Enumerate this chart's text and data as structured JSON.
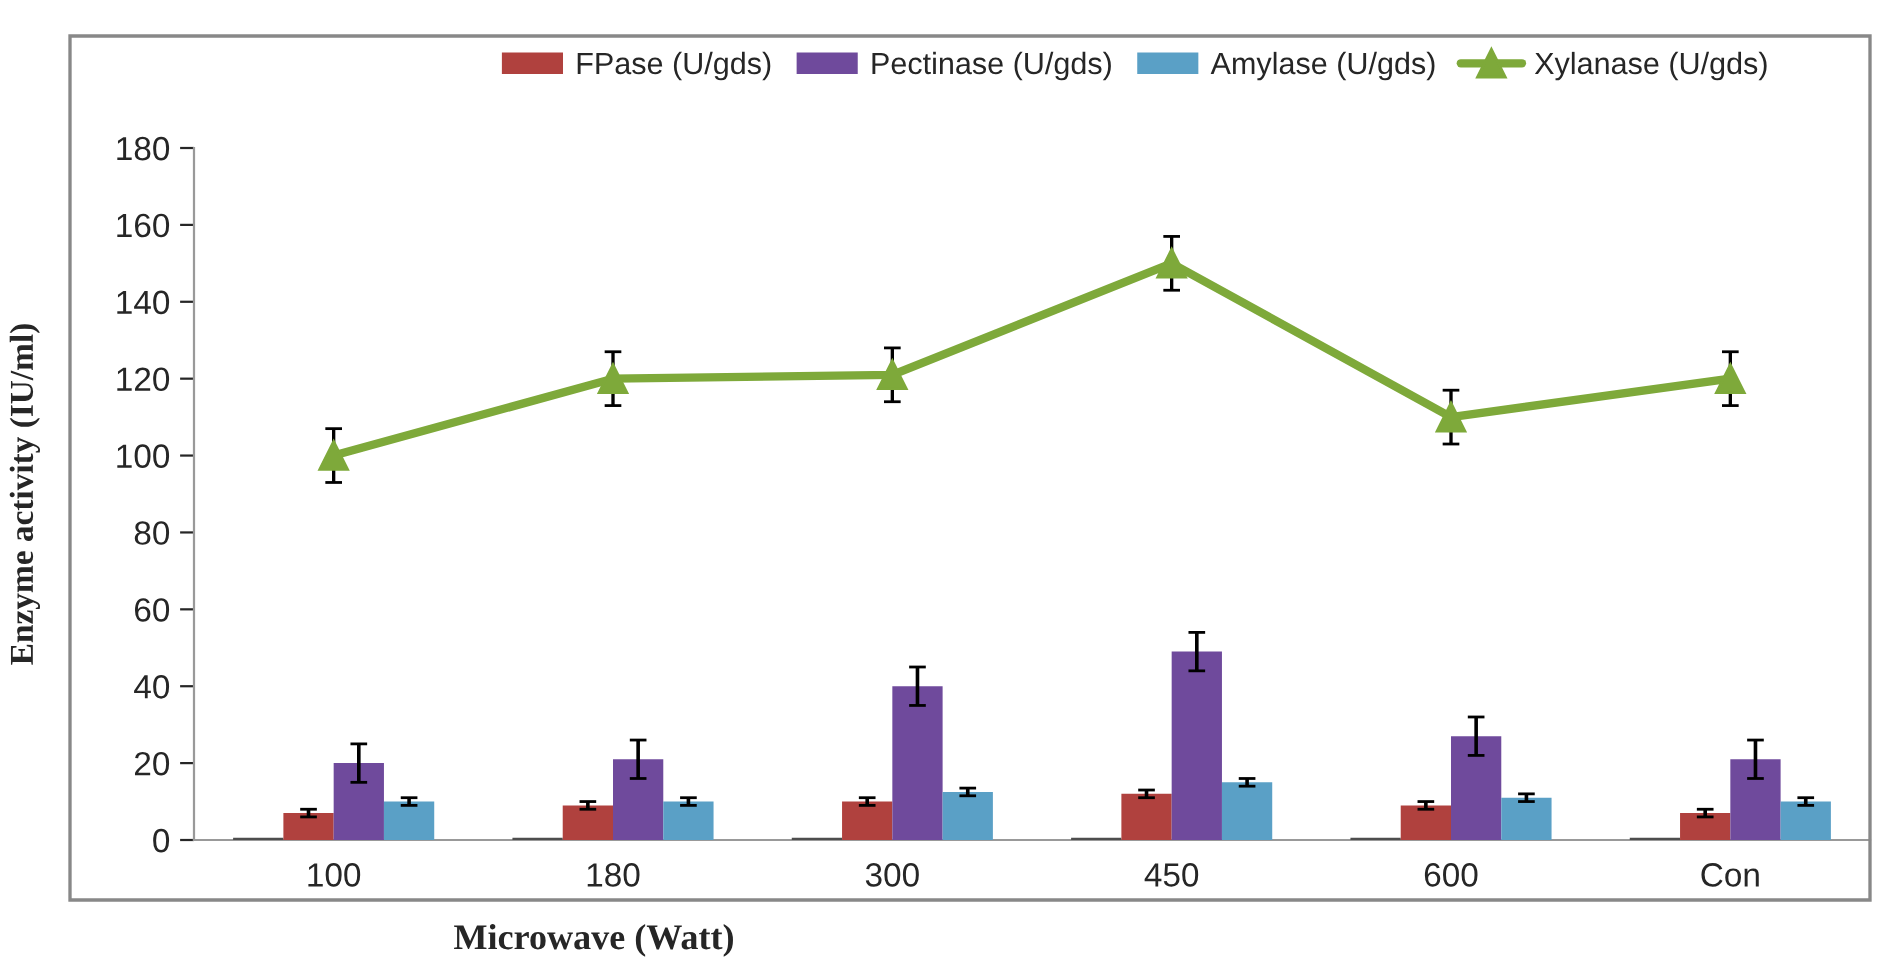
{
  "chart_data": {
    "type": "bar",
    "xlabel": "Microwave (Watt)",
    "ylabel": "Enzyme activity (IU/ml)",
    "categories": [
      "100",
      "180",
      "300",
      "450",
      "600",
      "Con"
    ],
    "series": [
      {
        "color": "#4d4d4d",
        "values": [
          0.6,
          0.6,
          0.6,
          0.6,
          0.6,
          0.6
        ]
      },
      {
        "name": "FPase (U/gds)",
        "color": "#b0413e",
        "values": [
          7,
          9,
          10,
          12,
          9,
          7
        ],
        "errors": [
          1,
          1,
          1,
          1,
          1,
          1
        ]
      },
      {
        "name": "Pectinase (U/gds)",
        "color": "#6f4a9c",
        "values": [
          20,
          21,
          40,
          49,
          27,
          21
        ],
        "errors": [
          5,
          5,
          5,
          5,
          5,
          5
        ]
      },
      {
        "name": "Amylase (U/gds)",
        "color": "#5aa0c6",
        "values": [
          10,
          10,
          12.5,
          15,
          11,
          10
        ],
        "errors": [
          1,
          1,
          1,
          1,
          1,
          1
        ]
      },
      {
        "name": "Xylanase (U/gds)",
        "type": "line",
        "color": "#7ea93a",
        "marker": "triangle",
        "values": [
          100,
          120,
          121,
          150,
          110,
          120
        ],
        "errors": [
          7,
          7,
          7,
          7,
          7,
          7
        ]
      }
    ],
    "ylim": [
      0,
      180
    ],
    "yticks": [
      0,
      20,
      40,
      60,
      80,
      100,
      120,
      140,
      160,
      180
    ],
    "grid": false,
    "legend": "top"
  }
}
